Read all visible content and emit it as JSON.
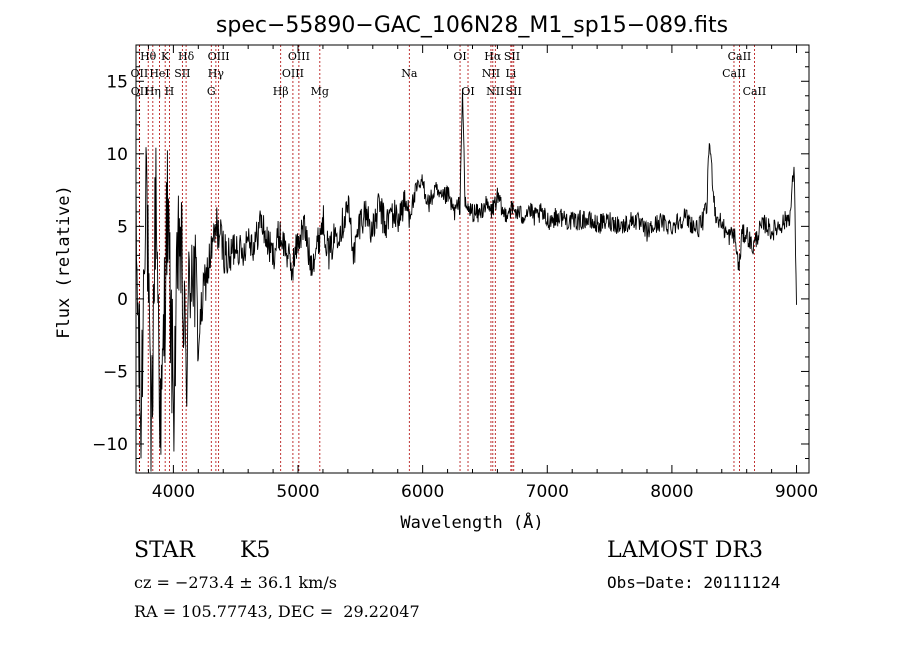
{
  "chart_data": {
    "type": "line",
    "title": "spec−55890−GAC_106N28_M1_sp15−089.fits",
    "xlabel": "Wavelength (Å)",
    "ylabel": "Flux (relative)",
    "xlim": [
      3700,
      9100
    ],
    "ylim": [
      -12,
      17.5
    ],
    "xticks": [
      4000,
      5000,
      6000,
      7000,
      8000,
      9000
    ],
    "yticks": [
      -10,
      -5,
      0,
      5,
      10,
      15
    ],
    "ytick_labels": [
      "−10",
      "−5",
      "0",
      "5",
      "10",
      "15"
    ],
    "grid": false,
    "series": [
      {
        "name": "spectrum",
        "color": "#000000",
        "x": [
          3700,
          3740,
          3780,
          3820,
          3860,
          3900,
          3950,
          4000,
          4050,
          4100,
          4150,
          4200,
          4250,
          4300,
          4350,
          4400,
          4450,
          4500,
          4550,
          4600,
          4650,
          4700,
          4750,
          4800,
          4850,
          4900,
          4950,
          5000,
          5050,
          5100,
          5150,
          5200,
          5250,
          5300,
          5350,
          5400,
          5450,
          5500,
          5550,
          5600,
          5650,
          5700,
          5750,
          5800,
          5850,
          5900,
          5950,
          6000,
          6050,
          6100,
          6150,
          6200,
          6250,
          6300,
          6320,
          6340,
          6360,
          6400,
          6450,
          6500,
          6550,
          6600,
          6650,
          6700,
          6750,
          6800,
          6850,
          6900,
          6950,
          7000,
          7100,
          7200,
          7300,
          7400,
          7500,
          7600,
          7700,
          7800,
          7900,
          8000,
          8100,
          8200,
          8240,
          8280,
          8300,
          8350,
          8400,
          8450,
          8500,
          8540,
          8560,
          8600,
          8650,
          8700,
          8750,
          8800,
          8850,
          8900,
          8950,
          8980,
          9000
        ],
        "values": [
          4.0,
          -9.0,
          10.5,
          -11.0,
          8.0,
          -10.0,
          6.5,
          -7.0,
          5.0,
          -5.0,
          4.0,
          -3.0,
          1.0,
          3.0,
          5.0,
          3.5,
          2.5,
          4.0,
          3.0,
          4.5,
          3.5,
          5.5,
          4.0,
          3.0,
          4.5,
          3.5,
          2.0,
          4.0,
          5.0,
          2.5,
          3.5,
          5.5,
          3.0,
          4.5,
          5.0,
          6.5,
          3.0,
          5.5,
          6.0,
          4.5,
          6.5,
          5.0,
          6.0,
          5.5,
          6.5,
          6.0,
          7.5,
          8.0,
          6.5,
          7.5,
          6.8,
          7.2,
          6.0,
          6.5,
          14.5,
          6.5,
          6.2,
          6.0,
          5.8,
          6.5,
          6.0,
          7.0,
          5.8,
          6.2,
          6.0,
          5.7,
          6.2,
          5.6,
          5.9,
          5.4,
          5.7,
          5.3,
          5.5,
          5.1,
          5.4,
          5.0,
          5.5,
          4.6,
          5.3,
          5.0,
          5.7,
          4.8,
          5.2,
          6.3,
          11.0,
          5.7,
          5.2,
          4.3,
          4.5,
          2.0,
          4.4,
          4.5,
          3.5,
          4.7,
          5.2,
          4.6,
          5.0,
          5.3,
          5.8,
          9.3,
          0.0
        ]
      }
    ],
    "lines": [
      {
        "name": "Hθ",
        "x": 3798,
        "row": 1
      },
      {
        "name": "Hη",
        "x": 3835,
        "row": 3
      },
      {
        "name": "K",
        "x": 3934,
        "row": 1
      },
      {
        "name": "H",
        "x": 3968,
        "row": 3
      },
      {
        "name": "Hδ",
        "x": 4102,
        "row": 1
      },
      {
        "name": "OII",
        "x": 3727,
        "row": 2
      },
      {
        "name": "OII",
        "x": 3729,
        "row": 3
      },
      {
        "name": "HeI",
        "x": 3889,
        "row": 2
      },
      {
        "name": "SII",
        "x": 4072,
        "row": 2
      },
      {
        "name": "G",
        "x": 4304,
        "row": 3
      },
      {
        "name": "OIII",
        "x": 4363,
        "row": 1
      },
      {
        "name": "Hγ",
        "x": 4341,
        "row": 2
      },
      {
        "name": "Hβ",
        "x": 4861,
        "row": 3
      },
      {
        "name": "OIII",
        "x": 5007,
        "row": 1
      },
      {
        "name": "OIII",
        "x": 4959,
        "row": 2
      },
      {
        "name": "Mg",
        "x": 5175,
        "row": 3
      },
      {
        "name": "Na",
        "x": 5893,
        "row": 2
      },
      {
        "name": "OI",
        "x": 6300,
        "row": 1
      },
      {
        "name": "OI",
        "x": 6364,
        "row": 3
      },
      {
        "name": "Hα",
        "x": 6563,
        "row": 1
      },
      {
        "name": "NII",
        "x": 6548,
        "row": 2
      },
      {
        "name": "NII",
        "x": 6583,
        "row": 3
      },
      {
        "name": "SII",
        "x": 6717,
        "row": 1
      },
      {
        "name": "Li",
        "x": 6708,
        "row": 2
      },
      {
        "name": "SII",
        "x": 6731,
        "row": 3
      },
      {
        "name": "CaII",
        "x": 8542,
        "row": 1
      },
      {
        "name": "CaII",
        "x": 8498,
        "row": 2
      },
      {
        "name": "CaII",
        "x": 8662,
        "row": 3
      }
    ]
  },
  "info": {
    "class_label": "STAR",
    "subclass": "K5",
    "survey": "LAMOST DR3",
    "cz": "cz = −273.4 ± 36.1 km/s",
    "obs_date": "Obs−Date: 20111124",
    "coords": "RA = 105.77743, DEC =  29.22047"
  }
}
